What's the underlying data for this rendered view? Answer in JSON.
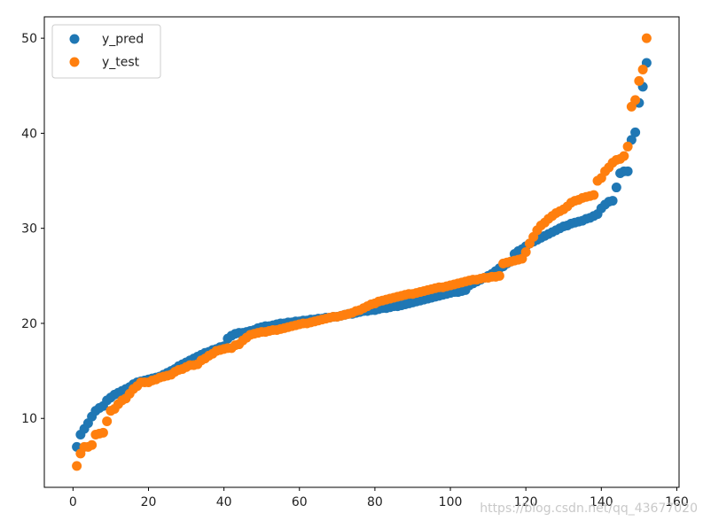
{
  "chart_data": {
    "type": "scatter",
    "title": "",
    "xlabel": "",
    "ylabel": "",
    "xlim": [
      -7.6,
      160.6
    ],
    "ylim": [
      2.75,
      52.25
    ],
    "x_ticks": [
      0,
      20,
      40,
      60,
      80,
      100,
      120,
      140,
      160
    ],
    "y_ticks": [
      10,
      20,
      30,
      40,
      50
    ],
    "x_tick_labels": [
      "0",
      "20",
      "40",
      "60",
      "80",
      "100",
      "120",
      "140",
      "160"
    ],
    "y_tick_labels": [
      "10",
      "20",
      "30",
      "40",
      "50"
    ],
    "grid": false,
    "legend_position": "upper-left",
    "watermark": "https://blog.csdn.net/qq_43677020",
    "series": [
      {
        "name": "y_pred",
        "color": "#1f77b4",
        "x": [
          1,
          2,
          3,
          4,
          5,
          6,
          7,
          8,
          9,
          10,
          11,
          12,
          13,
          14,
          15,
          16,
          17,
          18,
          19,
          20,
          21,
          22,
          23,
          24,
          25,
          26,
          27,
          28,
          29,
          30,
          31,
          32,
          33,
          34,
          35,
          36,
          37,
          38,
          39,
          40,
          41,
          42,
          43,
          44,
          45,
          46,
          47,
          48,
          49,
          50,
          51,
          52,
          53,
          54,
          55,
          56,
          57,
          58,
          59,
          60,
          61,
          62,
          63,
          64,
          65,
          66,
          67,
          68,
          69,
          70,
          71,
          72,
          73,
          74,
          75,
          76,
          77,
          78,
          79,
          80,
          81,
          82,
          83,
          84,
          85,
          86,
          87,
          88,
          89,
          90,
          91,
          92,
          93,
          94,
          95,
          96,
          97,
          98,
          99,
          100,
          101,
          102,
          103,
          104,
          105,
          106,
          107,
          108,
          109,
          110,
          111,
          112,
          113,
          114,
          115,
          116,
          117,
          118,
          119,
          120,
          121,
          122,
          123,
          124,
          125,
          126,
          127,
          128,
          129,
          130,
          131,
          132,
          133,
          134,
          135,
          136,
          137,
          138,
          139,
          140,
          141,
          142,
          143,
          144,
          145,
          146,
          147,
          148,
          149,
          150,
          151,
          152
        ],
        "y": [
          7.0,
          8.3,
          8.9,
          9.5,
          10.2,
          10.8,
          11.1,
          11.3,
          11.9,
          12.2,
          12.5,
          12.7,
          12.9,
          13.1,
          13.3,
          13.6,
          13.8,
          13.9,
          14.0,
          14.1,
          14.2,
          14.3,
          14.4,
          14.6,
          14.8,
          15.0,
          15.2,
          15.5,
          15.7,
          15.9,
          16.1,
          16.3,
          16.5,
          16.7,
          16.9,
          17.0,
          17.2,
          17.3,
          17.5,
          17.6,
          18.4,
          18.7,
          18.9,
          19.0,
          19.0,
          19.1,
          19.2,
          19.3,
          19.5,
          19.6,
          19.7,
          19.7,
          19.8,
          19.9,
          20.0,
          20.0,
          20.1,
          20.1,
          20.2,
          20.2,
          20.3,
          20.3,
          20.4,
          20.4,
          20.5,
          20.5,
          20.6,
          20.6,
          20.7,
          20.7,
          20.8,
          20.9,
          21.0,
          21.0,
          21.1,
          21.2,
          21.3,
          21.3,
          21.4,
          21.4,
          21.5,
          21.6,
          21.6,
          21.7,
          21.8,
          21.8,
          21.9,
          22.0,
          22.1,
          22.2,
          22.3,
          22.4,
          22.5,
          22.6,
          22.7,
          22.8,
          22.9,
          23.0,
          23.1,
          23.2,
          23.3,
          23.3,
          23.4,
          23.5,
          24.0,
          24.2,
          24.4,
          24.6,
          24.8,
          25.0,
          25.2,
          25.5,
          25.8,
          26.0,
          26.3,
          26.5,
          27.3,
          27.6,
          27.8,
          28.1,
          28.4,
          28.6,
          28.8,
          29.0,
          29.2,
          29.4,
          29.6,
          29.8,
          30.0,
          30.2,
          30.3,
          30.5,
          30.6,
          30.7,
          30.8,
          31.0,
          31.1,
          31.3,
          31.5,
          32.1,
          32.5,
          32.8,
          32.9,
          34.3,
          35.8,
          36.0,
          36.0,
          39.3,
          40.1,
          43.2,
          44.9,
          47.4
        ]
      },
      {
        "name": "y_test",
        "color": "#ff7f0e",
        "x": [
          1,
          2,
          3,
          4,
          5,
          6,
          7,
          8,
          9,
          10,
          11,
          12,
          13,
          14,
          15,
          16,
          17,
          18,
          19,
          20,
          21,
          22,
          23,
          24,
          25,
          26,
          27,
          28,
          29,
          30,
          31,
          32,
          33,
          34,
          35,
          36,
          37,
          38,
          39,
          40,
          41,
          42,
          43,
          44,
          45,
          46,
          47,
          48,
          49,
          50,
          51,
          52,
          53,
          54,
          55,
          56,
          57,
          58,
          59,
          60,
          61,
          62,
          63,
          64,
          65,
          66,
          67,
          68,
          69,
          70,
          71,
          72,
          73,
          74,
          75,
          76,
          77,
          78,
          79,
          80,
          81,
          82,
          83,
          84,
          85,
          86,
          87,
          88,
          89,
          90,
          91,
          92,
          93,
          94,
          95,
          96,
          97,
          98,
          99,
          100,
          101,
          102,
          103,
          104,
          105,
          106,
          107,
          108,
          109,
          110,
          111,
          112,
          113,
          114,
          115,
          116,
          117,
          118,
          119,
          120,
          121,
          122,
          123,
          124,
          125,
          126,
          127,
          128,
          129,
          130,
          131,
          132,
          133,
          134,
          135,
          136,
          137,
          138,
          139,
          140,
          141,
          142,
          143,
          144,
          145,
          146,
          147,
          148,
          149,
          150,
          151,
          152
        ],
        "y": [
          5.0,
          6.3,
          7.0,
          7.0,
          7.2,
          8.3,
          8.4,
          8.5,
          9.7,
          10.8,
          11.0,
          11.5,
          11.9,
          12.1,
          12.6,
          13.1,
          13.4,
          13.8,
          13.8,
          13.8,
          14.0,
          14.1,
          14.3,
          14.4,
          14.5,
          14.6,
          14.9,
          15.1,
          15.2,
          15.4,
          15.6,
          15.6,
          15.7,
          16.1,
          16.3,
          16.6,
          16.8,
          17.1,
          17.2,
          17.3,
          17.4,
          17.4,
          17.7,
          17.8,
          18.2,
          18.5,
          18.8,
          18.9,
          19.0,
          19.1,
          19.1,
          19.2,
          19.3,
          19.3,
          19.4,
          19.5,
          19.6,
          19.7,
          19.8,
          19.9,
          20.0,
          20.0,
          20.1,
          20.2,
          20.3,
          20.4,
          20.5,
          20.6,
          20.7,
          20.7,
          20.8,
          20.9,
          21.0,
          21.1,
          21.3,
          21.4,
          21.6,
          21.8,
          22.0,
          22.1,
          22.3,
          22.4,
          22.5,
          22.6,
          22.7,
          22.8,
          22.9,
          23.0,
          23.1,
          23.1,
          23.2,
          23.3,
          23.4,
          23.5,
          23.6,
          23.7,
          23.8,
          23.8,
          23.9,
          24.0,
          24.1,
          24.2,
          24.3,
          24.4,
          24.5,
          24.6,
          24.6,
          24.7,
          24.8,
          24.8,
          24.9,
          24.9,
          25.0,
          26.3,
          26.4,
          26.5,
          26.6,
          26.7,
          26.8,
          27.5,
          28.4,
          29.1,
          29.8,
          30.3,
          30.6,
          31.0,
          31.3,
          31.6,
          31.8,
          32.0,
          32.3,
          32.7,
          32.9,
          33.0,
          33.2,
          33.3,
          33.4,
          33.5,
          35.0,
          35.3,
          36.0,
          36.4,
          36.9,
          37.2,
          37.3,
          37.6,
          38.6,
          42.8,
          43.5,
          45.5,
          46.7,
          50.0
        ]
      }
    ]
  }
}
